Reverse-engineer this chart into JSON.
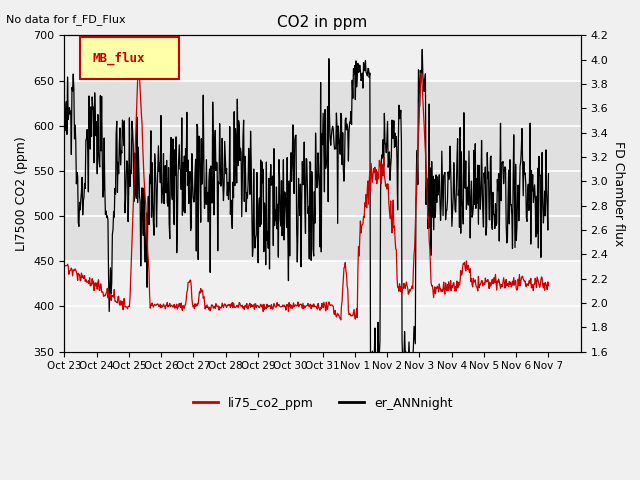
{
  "title": "CO2 in ppm",
  "top_left_text": "No data for f_FD_Flux",
  "ylabel_left": "LI7500 CO2 (ppm)",
  "ylabel_right": "FD Chamber flux",
  "ylim_left": [
    350,
    700
  ],
  "ylim_right": [
    1.6,
    4.2
  ],
  "yticks_left": [
    350,
    400,
    450,
    500,
    550,
    600,
    650,
    700
  ],
  "yticks_right": [
    1.6,
    1.8,
    2.0,
    2.2,
    2.4,
    2.6,
    2.8,
    3.0,
    3.2,
    3.4,
    3.6,
    3.8,
    4.0,
    4.2
  ],
  "xtick_labels": [
    "Oct 23",
    "Oct 24",
    "Oct 25",
    "Oct 26",
    "Oct 27",
    "Oct 28",
    "Oct 29",
    "Oct 30",
    "Oct 31",
    "Nov 1",
    "Nov 2",
    "Nov 3",
    "Nov 4",
    "Nov 5",
    "Nov 6",
    "Nov 7"
  ],
  "xtick_positions": [
    0,
    1,
    2,
    3,
    4,
    5,
    6,
    7,
    8,
    9,
    10,
    11,
    12,
    13,
    14,
    15
  ],
  "line1_color": "#cc0000",
  "line2_color": "#000000",
  "line1_label": "li75_co2_ppm",
  "line2_label": "er_ANNnight",
  "legend_box_color": "#ffffaa",
  "legend_box_edge": "#cc0000",
  "legend_box_text": "MB_flux",
  "bg_band1": [
    450,
    650
  ],
  "bg_band_color": "#e0e0e0",
  "grid_color": "#ffffff",
  "fig_bg": "#f0f0f0",
  "xlim": [
    0,
    16
  ]
}
